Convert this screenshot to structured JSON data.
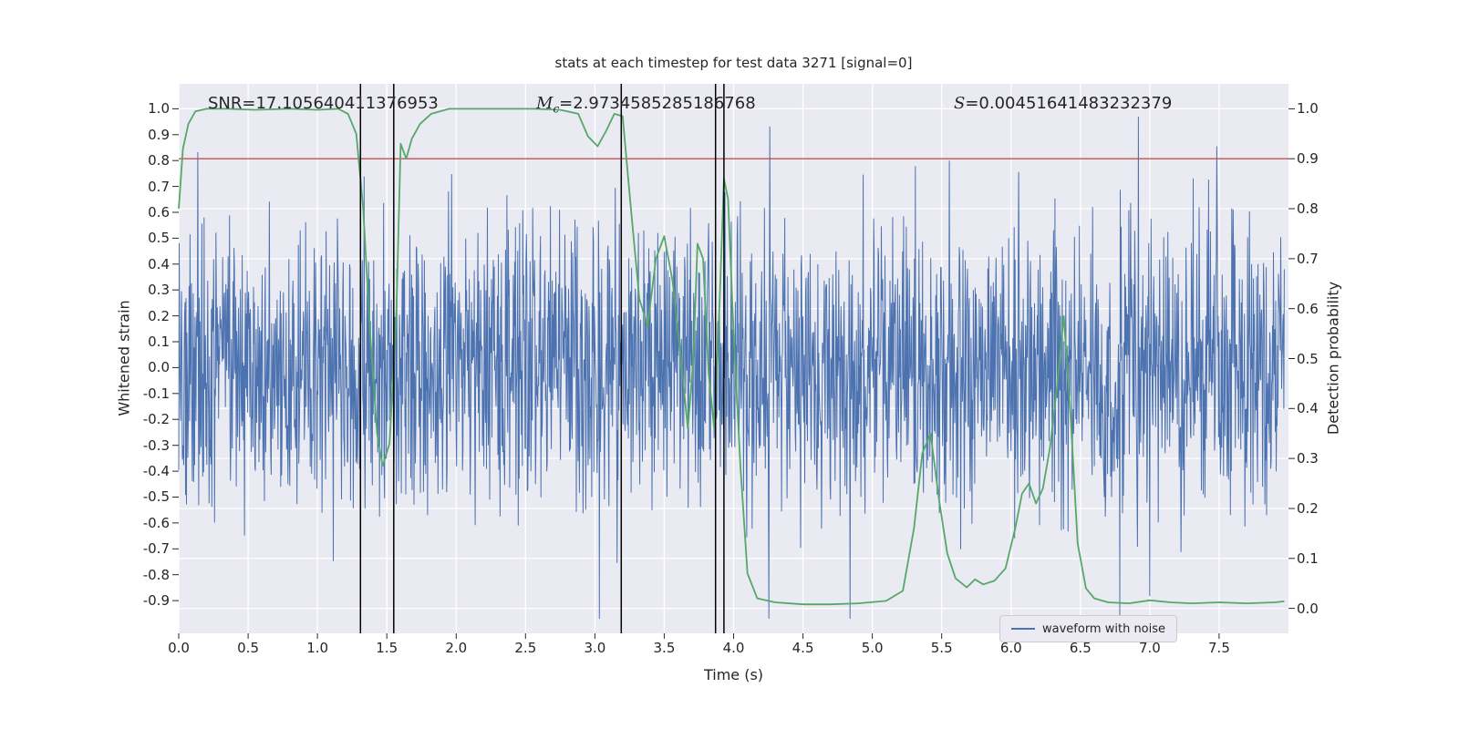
{
  "title": "stats at each timestep for test data 3271 [signal=0]",
  "annotations": {
    "snr": "SNR=17.105640411376953",
    "mc_symbol": "M",
    "mc_subscript": "c",
    "mc_value": "=2.9734585285186768",
    "s_symbol": "S",
    "s_value": "=0.00451641483232379"
  },
  "legend": {
    "label": "waveform with noise"
  },
  "axes": {
    "xlabel": "Time (s)",
    "left_label": "Whitened strain",
    "right_label": "Detection probability",
    "x_tick_values": [
      0.0,
      0.5,
      1.0,
      1.5,
      2.0,
      2.5,
      3.0,
      3.5,
      4.0,
      4.5,
      5.0,
      5.5,
      6.0,
      6.5,
      7.0,
      7.5
    ],
    "x_tick_labels": [
      "0.0",
      "0.5",
      "1.0",
      "1.5",
      "2.0",
      "2.5",
      "3.0",
      "3.5",
      "4.0",
      "4.5",
      "5.0",
      "5.5",
      "6.0",
      "6.5",
      "7.0",
      "7.5"
    ],
    "left_tick_values": [
      1.0,
      0.9,
      0.8,
      0.7,
      0.6,
      0.5,
      0.4,
      0.3,
      0.2,
      0.1,
      0.0,
      -0.1,
      -0.2,
      -0.3,
      -0.4,
      -0.5,
      -0.6,
      -0.7,
      -0.8,
      -0.9
    ],
    "left_tick_labels": [
      "1.0",
      "0.9",
      "0.8",
      "0.7",
      "0.6",
      "0.5",
      "0.4",
      "0.3",
      "0.2",
      "0.1",
      "0.0",
      "-0.1",
      "-0.2",
      "-0.3",
      "-0.4",
      "-0.5",
      "-0.6",
      "-0.7",
      "-0.8",
      "-0.9"
    ],
    "right_tick_values": [
      1.0,
      0.9,
      0.8,
      0.7,
      0.6,
      0.5,
      0.4,
      0.3,
      0.2,
      0.1,
      0.0
    ],
    "right_tick_labels": [
      "1.0",
      "0.9",
      "0.8",
      "0.7",
      "0.6",
      "0.5",
      "0.4",
      "0.3",
      "0.2",
      "0.1",
      "0.0"
    ]
  },
  "colors": {
    "plot_bg": "#eaeaf2",
    "grid": "#ffffff",
    "noise": "#4c72b0",
    "prob": "#55a868",
    "threshold": "#c44e52",
    "vline": "#000000",
    "text": "#262626"
  },
  "chart_data": {
    "type": "line",
    "title": "stats at each timestep for test data 3271 [signal=0]",
    "xlabel": "Time (s)",
    "ylabel_left": "Whitened strain",
    "ylabel_right": "Detection probability",
    "xlim": [
      0.0,
      8.0
    ],
    "ylim_left": [
      -1.0265,
      1.0965
    ],
    "ylim_right": [
      -0.05,
      1.05
    ],
    "grid": true,
    "legend_position": "lower right",
    "threshold_line": {
      "axis": "right",
      "y": 0.9,
      "color": "#c44e52"
    },
    "vlines": [
      1.31,
      1.55,
      3.19,
      3.87,
      3.93
    ],
    "series": [
      {
        "name": "waveform with noise",
        "axis": "left",
        "color": "#4c72b0",
        "style": "procedural-noise",
        "noise": {
          "seed": 3271,
          "n": 2440,
          "x_start": 0.0,
          "x_end": 7.97,
          "std": 0.26,
          "spike_prob": 0.02,
          "spike_gain": 1.6,
          "clamp": 0.97
        }
      },
      {
        "name": "detection probability",
        "axis": "right",
        "color": "#55a868",
        "x": [
          0.0,
          0.03,
          0.07,
          0.12,
          0.2,
          0.35,
          0.55,
          0.8,
          1.0,
          1.15,
          1.22,
          1.28,
          1.33,
          1.38,
          1.43,
          1.47,
          1.52,
          1.57,
          1.6,
          1.64,
          1.68,
          1.74,
          1.82,
          1.95,
          2.1,
          2.3,
          2.55,
          2.75,
          2.88,
          2.95,
          3.02,
          3.08,
          3.14,
          3.2,
          3.26,
          3.32,
          3.38,
          3.44,
          3.5,
          3.56,
          3.62,
          3.67,
          3.71,
          3.74,
          3.78,
          3.82,
          3.86,
          3.9,
          3.93,
          3.96,
          4.0,
          4.05,
          4.1,
          4.17,
          4.3,
          4.5,
          4.7,
          4.9,
          5.1,
          5.22,
          5.3,
          5.36,
          5.42,
          5.48,
          5.54,
          5.6,
          5.68,
          5.74,
          5.8,
          5.88,
          5.96,
          6.03,
          6.08,
          6.13,
          6.18,
          6.23,
          6.28,
          6.33,
          6.38,
          6.43,
          6.48,
          6.54,
          6.6,
          6.7,
          6.85,
          7.0,
          7.15,
          7.3,
          7.5,
          7.7,
          7.9,
          7.97
        ],
        "y": [
          0.8,
          0.92,
          0.97,
          0.995,
          1.0,
          1.0,
          0.998,
          1.0,
          0.998,
          1.0,
          0.99,
          0.95,
          0.8,
          0.55,
          0.35,
          0.285,
          0.33,
          0.6,
          0.93,
          0.9,
          0.94,
          0.97,
          0.99,
          1.0,
          1.0,
          1.0,
          1.0,
          0.998,
          0.99,
          0.945,
          0.925,
          0.955,
          0.99,
          0.985,
          0.8,
          0.62,
          0.565,
          0.7,
          0.745,
          0.655,
          0.5,
          0.36,
          0.5,
          0.73,
          0.7,
          0.47,
          0.36,
          0.62,
          0.86,
          0.82,
          0.55,
          0.28,
          0.07,
          0.02,
          0.012,
          0.008,
          0.008,
          0.01,
          0.015,
          0.035,
          0.16,
          0.31,
          0.35,
          0.22,
          0.11,
          0.06,
          0.042,
          0.058,
          0.048,
          0.055,
          0.08,
          0.16,
          0.23,
          0.25,
          0.21,
          0.24,
          0.32,
          0.44,
          0.585,
          0.38,
          0.13,
          0.04,
          0.02,
          0.012,
          0.01,
          0.016,
          0.012,
          0.01,
          0.012,
          0.01,
          0.012,
          0.014
        ]
      }
    ]
  }
}
